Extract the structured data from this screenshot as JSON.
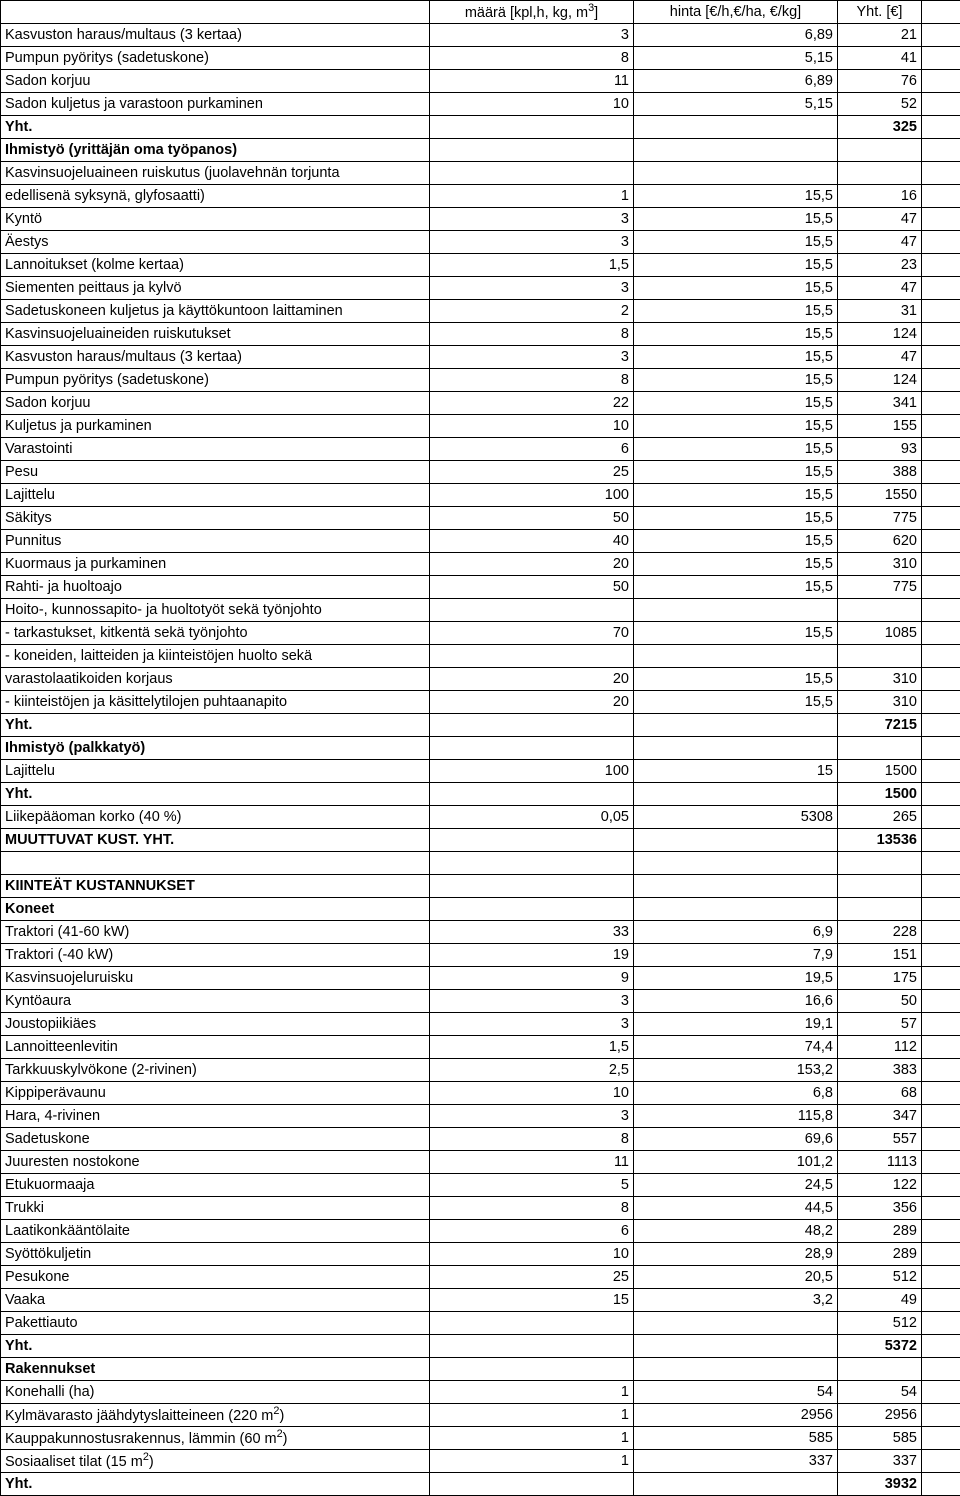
{
  "headers": {
    "qty": "määrä [kpl,h, kg, m",
    "qty_sup": "3",
    "qty_close": "]",
    "price": "hinta [€/h,€/ha, €/kg]",
    "total": "Yht. [€]"
  },
  "rows": [
    {
      "t": "d",
      "label": "Kasvuston haraus/multaus (3 kertaa)",
      "qty": "3",
      "price": "6,89",
      "tot": "21"
    },
    {
      "t": "d",
      "label": "Pumpun pyöritys (sadetuskone)",
      "qty": "8",
      "price": "5,15",
      "tot": "41"
    },
    {
      "t": "d",
      "label": "Sadon korjuu",
      "qty": "11",
      "price": "6,89",
      "tot": "76"
    },
    {
      "t": "d",
      "label": "Sadon kuljetus ja varastoon purkaminen",
      "qty": "10",
      "price": "5,15",
      "tot": "52"
    },
    {
      "t": "b",
      "label": "Yht.",
      "tot": "325"
    },
    {
      "t": "b",
      "label": "Ihmistyö (yrittäjän oma työpanos)"
    },
    {
      "t": "d",
      "label": "Kasvinsuojeluaineen ruiskutus (juolavehnän torjunta"
    },
    {
      "t": "d",
      "label": "edellisenä syksynä, glyfosaatti)",
      "qty": "1",
      "price": "15,5",
      "tot": "16"
    },
    {
      "t": "d",
      "label": "Kyntö",
      "qty": "3",
      "price": "15,5",
      "tot": "47"
    },
    {
      "t": "d",
      "label": "Äestys",
      "qty": "3",
      "price": "15,5",
      "tot": "47"
    },
    {
      "t": "d",
      "label": "Lannoitukset (kolme kertaa)",
      "qty": "1,5",
      "price": "15,5",
      "tot": "23"
    },
    {
      "t": "d",
      "label": "Siementen peittaus ja kylvö",
      "qty": "3",
      "price": "15,5",
      "tot": "47"
    },
    {
      "t": "d",
      "label": "Sadetuskoneen kuljetus ja käyttökuntoon laittaminen",
      "qty": "2",
      "price": "15,5",
      "tot": "31"
    },
    {
      "t": "d",
      "label": "Kasvinsuojeluaineiden ruiskutukset",
      "qty": "8",
      "price": "15,5",
      "tot": "124"
    },
    {
      "t": "d",
      "label": "Kasvuston haraus/multaus (3 kertaa)",
      "qty": "3",
      "price": "15,5",
      "tot": "47"
    },
    {
      "t": "d",
      "label": "Pumpun pyöritys (sadetuskone)",
      "qty": "8",
      "price": "15,5",
      "tot": "124"
    },
    {
      "t": "d",
      "label": "Sadon korjuu",
      "qty": "22",
      "price": "15,5",
      "tot": "341"
    },
    {
      "t": "d",
      "label": "Kuljetus ja purkaminen",
      "qty": "10",
      "price": "15,5",
      "tot": "155"
    },
    {
      "t": "d",
      "label": "Varastointi",
      "qty": "6",
      "price": "15,5",
      "tot": "93"
    },
    {
      "t": "d",
      "label": "Pesu",
      "qty": "25",
      "price": "15,5",
      "tot": "388"
    },
    {
      "t": "d",
      "label": "Lajittelu",
      "qty": "100",
      "price": "15,5",
      "tot": "1550"
    },
    {
      "t": "d",
      "label": "Säkitys",
      "qty": "50",
      "price": "15,5",
      "tot": "775"
    },
    {
      "t": "d",
      "label": "Punnitus",
      "qty": "40",
      "price": "15,5",
      "tot": "620"
    },
    {
      "t": "d",
      "label": "Kuormaus ja purkaminen",
      "qty": "20",
      "price": "15,5",
      "tot": "310"
    },
    {
      "t": "d",
      "label": "Rahti- ja huoltoajo",
      "qty": "50",
      "price": "15,5",
      "tot": "775"
    },
    {
      "t": "d",
      "label": "Hoito-, kunnossapito- ja huoltotyöt sekä työnjohto"
    },
    {
      "t": "d",
      "label": " - tarkastukset, kitkentä sekä työnjohto",
      "qty": "70",
      "price": "15,5",
      "tot": "1085"
    },
    {
      "t": "d",
      "label": " - koneiden, laitteiden ja kiinteistöjen huolto sekä"
    },
    {
      "t": "d",
      "label": "   varastolaatikoiden korjaus",
      "qty": "20",
      "price": "15,5",
      "tot": "310"
    },
    {
      "t": "d",
      "label": " - kiinteistöjen ja käsittelytilojen puhtaanapito",
      "qty": "20",
      "price": "15,5",
      "tot": "310"
    },
    {
      "t": "b",
      "label": "Yht.",
      "tot": "7215"
    },
    {
      "t": "b",
      "label": "Ihmistyö (palkkatyö)"
    },
    {
      "t": "d",
      "label": "Lajittelu",
      "qty": "100",
      "price": "15",
      "tot": "1500"
    },
    {
      "t": "b",
      "label": "Yht.",
      "tot": "1500"
    },
    {
      "t": "d",
      "label": "Liikepääoman korko (40 %)",
      "qty": "0,05",
      "price": "5308",
      "tot": "265"
    },
    {
      "t": "b",
      "label": "MUUTTUVAT KUST. YHT.",
      "tot": "13536",
      "extra": "13536"
    },
    {
      "t": "e"
    },
    {
      "t": "b",
      "label": "KIINTEÄT KUSTANNUKSET"
    },
    {
      "t": "b",
      "label": "Koneet"
    },
    {
      "t": "d",
      "label": "Traktori (41-60 kW)",
      "qty": "33",
      "price": "6,9",
      "tot": "228"
    },
    {
      "t": "d",
      "label": "Traktori (-40 kW)",
      "qty": "19",
      "price": "7,9",
      "tot": "151"
    },
    {
      "t": "d",
      "label": "Kasvinsuojeluruisku",
      "qty": "9",
      "price": "19,5",
      "tot": "175"
    },
    {
      "t": "d",
      "label": "Kyntöaura",
      "qty": "3",
      "price": "16,6",
      "tot": "50"
    },
    {
      "t": "d",
      "label": "Joustopiikiäes",
      "qty": "3",
      "price": "19,1",
      "tot": "57"
    },
    {
      "t": "d",
      "label": "Lannoitteenlevitin",
      "qty": "1,5",
      "price": "74,4",
      "tot": "112"
    },
    {
      "t": "d",
      "label": "Tarkkuuskylvökone (2-rivinen)",
      "qty": "2,5",
      "price": "153,2",
      "tot": "383"
    },
    {
      "t": "d",
      "label": "Kippiperävaunu",
      "qty": "10",
      "price": "6,8",
      "tot": "68"
    },
    {
      "t": "d",
      "label": "Hara, 4-rivinen",
      "qty": "3",
      "price": "115,8",
      "tot": "347"
    },
    {
      "t": "d",
      "label": "Sadetuskone",
      "qty": "8",
      "price": "69,6",
      "tot": "557"
    },
    {
      "t": "d",
      "label": "Juuresten nostokone",
      "qty": "11",
      "price": "101,2",
      "tot": "1113"
    },
    {
      "t": "d",
      "label": "Etukuormaaja",
      "qty": "5",
      "price": "24,5",
      "tot": "122"
    },
    {
      "t": "d",
      "label": "Trukki",
      "qty": "8",
      "price": "44,5",
      "tot": "356"
    },
    {
      "t": "d",
      "label": "Laatikonkääntölaite",
      "qty": "6",
      "price": "48,2",
      "tot": "289"
    },
    {
      "t": "d",
      "label": "Syöttökuljetin",
      "qty": "10",
      "price": "28,9",
      "tot": "289"
    },
    {
      "t": "d",
      "label": "Pesukone",
      "qty": "25",
      "price": "20,5",
      "tot": "512"
    },
    {
      "t": "d",
      "label": "Vaaka",
      "qty": "15",
      "price": "3,2",
      "tot": "49"
    },
    {
      "t": "d",
      "label": "Pakettiauto",
      "tot": "512"
    },
    {
      "t": "b",
      "label": "Yht.",
      "tot": "5372"
    },
    {
      "t": "b",
      "label": "Rakennukset"
    },
    {
      "t": "d",
      "label": "Konehalli (ha)",
      "qty": "1",
      "price": "54",
      "tot": "54"
    },
    {
      "t": "d",
      "label_html": "Kylmävarasto jäähdytyslaitteineen (220 m<sup>2</sup>)",
      "qty": "1",
      "price": "2956",
      "tot": "2956"
    },
    {
      "t": "d",
      "label_html": "Kauppakunnostusrakennus, lämmin  (60 m<sup>2</sup>)",
      "qty": "1",
      "price": "585",
      "tot": "585"
    },
    {
      "t": "d",
      "label_html": "Sosiaaliset tilat (15 m<sup>2</sup>)",
      "qty": "1",
      "price": "337",
      "tot": "337"
    },
    {
      "t": "b",
      "label": "Yht.",
      "tot": "3932"
    }
  ]
}
